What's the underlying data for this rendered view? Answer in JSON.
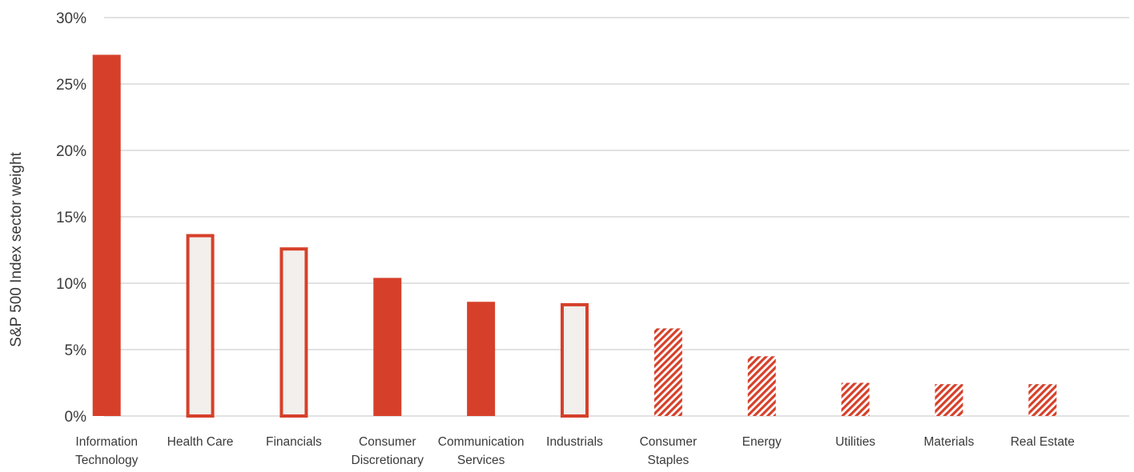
{
  "chart_data": {
    "type": "bar",
    "ylabel": "S&P 500 Index sector weight",
    "xlabel": "",
    "ylim": [
      0,
      30
    ],
    "yticks": [
      "0%",
      "5%",
      "10%",
      "15%",
      "20%",
      "25%",
      "30%"
    ],
    "grid": true,
    "categories": [
      [
        "Information",
        "Technology"
      ],
      [
        "Health Care"
      ],
      [
        "Financials"
      ],
      [
        "Consumer",
        "Discretionary"
      ],
      [
        "Communication",
        "Services"
      ],
      [
        "Industrials"
      ],
      [
        "Consumer",
        "Staples"
      ],
      [
        "Energy"
      ],
      [
        "Utilities"
      ],
      [
        "Materials"
      ],
      [
        "Real Estate"
      ]
    ],
    "values": [
      27.2,
      13.7,
      12.7,
      10.4,
      8.6,
      8.5,
      6.6,
      4.5,
      2.5,
      2.4,
      2.4
    ],
    "styles": [
      "solid",
      "outline",
      "outline",
      "solid",
      "solid",
      "outline",
      "hatched",
      "hatched",
      "hatched",
      "hatched",
      "hatched"
    ],
    "colors": {
      "accent": "#d6402a",
      "outline_fill": "#f2efec",
      "grid": "#d9d9d9",
      "text": "#3a3a3a"
    }
  }
}
